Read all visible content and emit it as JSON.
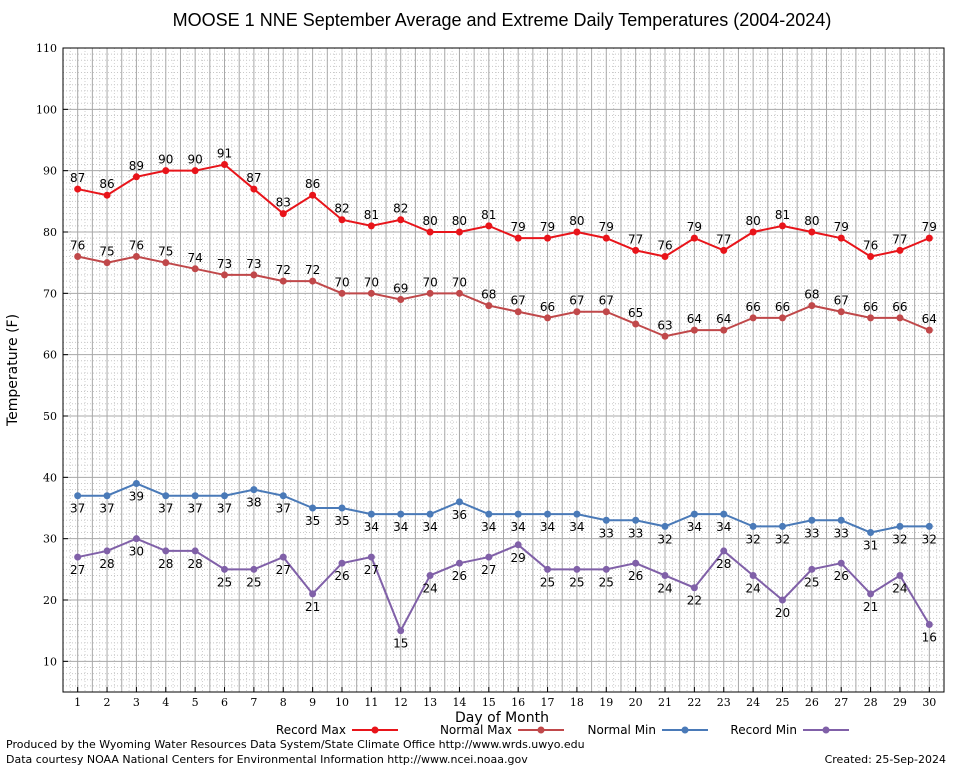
{
  "chart_data": {
    "type": "line",
    "title": "MOOSE 1 NNE September Average and Extreme Daily Temperatures (2004-2024)",
    "xlabel": "Day of Month",
    "ylabel": "Temperature (F)",
    "ylim": [
      5,
      110
    ],
    "yticks": [
      10,
      20,
      30,
      40,
      50,
      60,
      70,
      80,
      90,
      100,
      110
    ],
    "x": [
      1,
      2,
      3,
      4,
      5,
      6,
      7,
      8,
      9,
      10,
      11,
      12,
      13,
      14,
      15,
      16,
      17,
      18,
      19,
      20,
      21,
      22,
      23,
      24,
      25,
      26,
      27,
      28,
      29,
      30
    ],
    "grid": true,
    "legend_position": "bottom",
    "series": [
      {
        "name": "Record Max",
        "color": "#e8141a",
        "label_position": "above",
        "values": [
          87,
          86,
          89,
          90,
          90,
          91,
          87,
          83,
          86,
          82,
          81,
          82,
          80,
          80,
          81,
          79,
          79,
          80,
          79,
          77,
          76,
          79,
          77,
          80,
          81,
          80,
          79,
          76,
          77,
          79
        ]
      },
      {
        "name": "Normal Max",
        "color": "#c0484a",
        "label_position": "above",
        "values": [
          76,
          75,
          76,
          75,
          74,
          73,
          73,
          72,
          72,
          70,
          70,
          69,
          70,
          70,
          68,
          67,
          66,
          67,
          67,
          65,
          63,
          64,
          64,
          66,
          66,
          68,
          67,
          66,
          66,
          64
        ]
      },
      {
        "name": "Normal Min",
        "color": "#4a7ab8",
        "label_position": "below",
        "values": [
          37,
          37,
          39,
          37,
          37,
          37,
          38,
          37,
          35,
          35,
          34,
          34,
          34,
          36,
          34,
          34,
          34,
          34,
          33,
          33,
          32,
          34,
          34,
          32,
          32,
          33,
          33,
          31,
          32,
          32
        ]
      },
      {
        "name": "Record Min",
        "color": "#8060a8",
        "label_position": "below",
        "values": [
          27,
          28,
          30,
          28,
          28,
          25,
          25,
          27,
          21,
          26,
          27,
          15,
          24,
          26,
          27,
          29,
          25,
          25,
          25,
          26,
          24,
          22,
          28,
          24,
          20,
          25,
          26,
          21,
          24,
          16
        ]
      }
    ]
  },
  "footer": {
    "producer": "Produced by the Wyoming Water Resources Data System/State Climate Office http://www.wrds.uwyo.edu",
    "courtesy": "Data courtesy NOAA National Centers for Environmental Information http://www.ncei.noaa.gov",
    "created": "Created:  25-Sep-2024"
  }
}
